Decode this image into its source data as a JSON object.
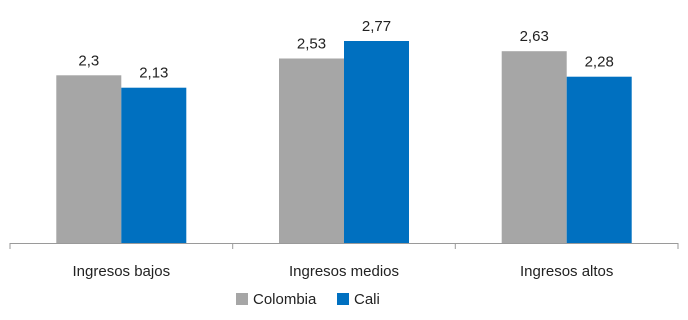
{
  "chart_data": {
    "type": "bar",
    "categories": [
      "Ingresos bajos",
      "Ingresos medios",
      "Ingresos altos"
    ],
    "series": [
      {
        "name": "Colombia",
        "values": [
          2.3,
          2.53,
          2.63
        ],
        "labels": [
          "2,3",
          "2,53",
          "2,63"
        ],
        "color": "#a6a6a6"
      },
      {
        "name": "Cali",
        "values": [
          2.13,
          2.77,
          2.28
        ],
        "labels": [
          "2,13",
          "2,77",
          "2,28"
        ],
        "color": "#0070c0"
      }
    ],
    "ylim": [
      0,
      3
    ],
    "grid": false,
    "legend_position": "bottom"
  }
}
